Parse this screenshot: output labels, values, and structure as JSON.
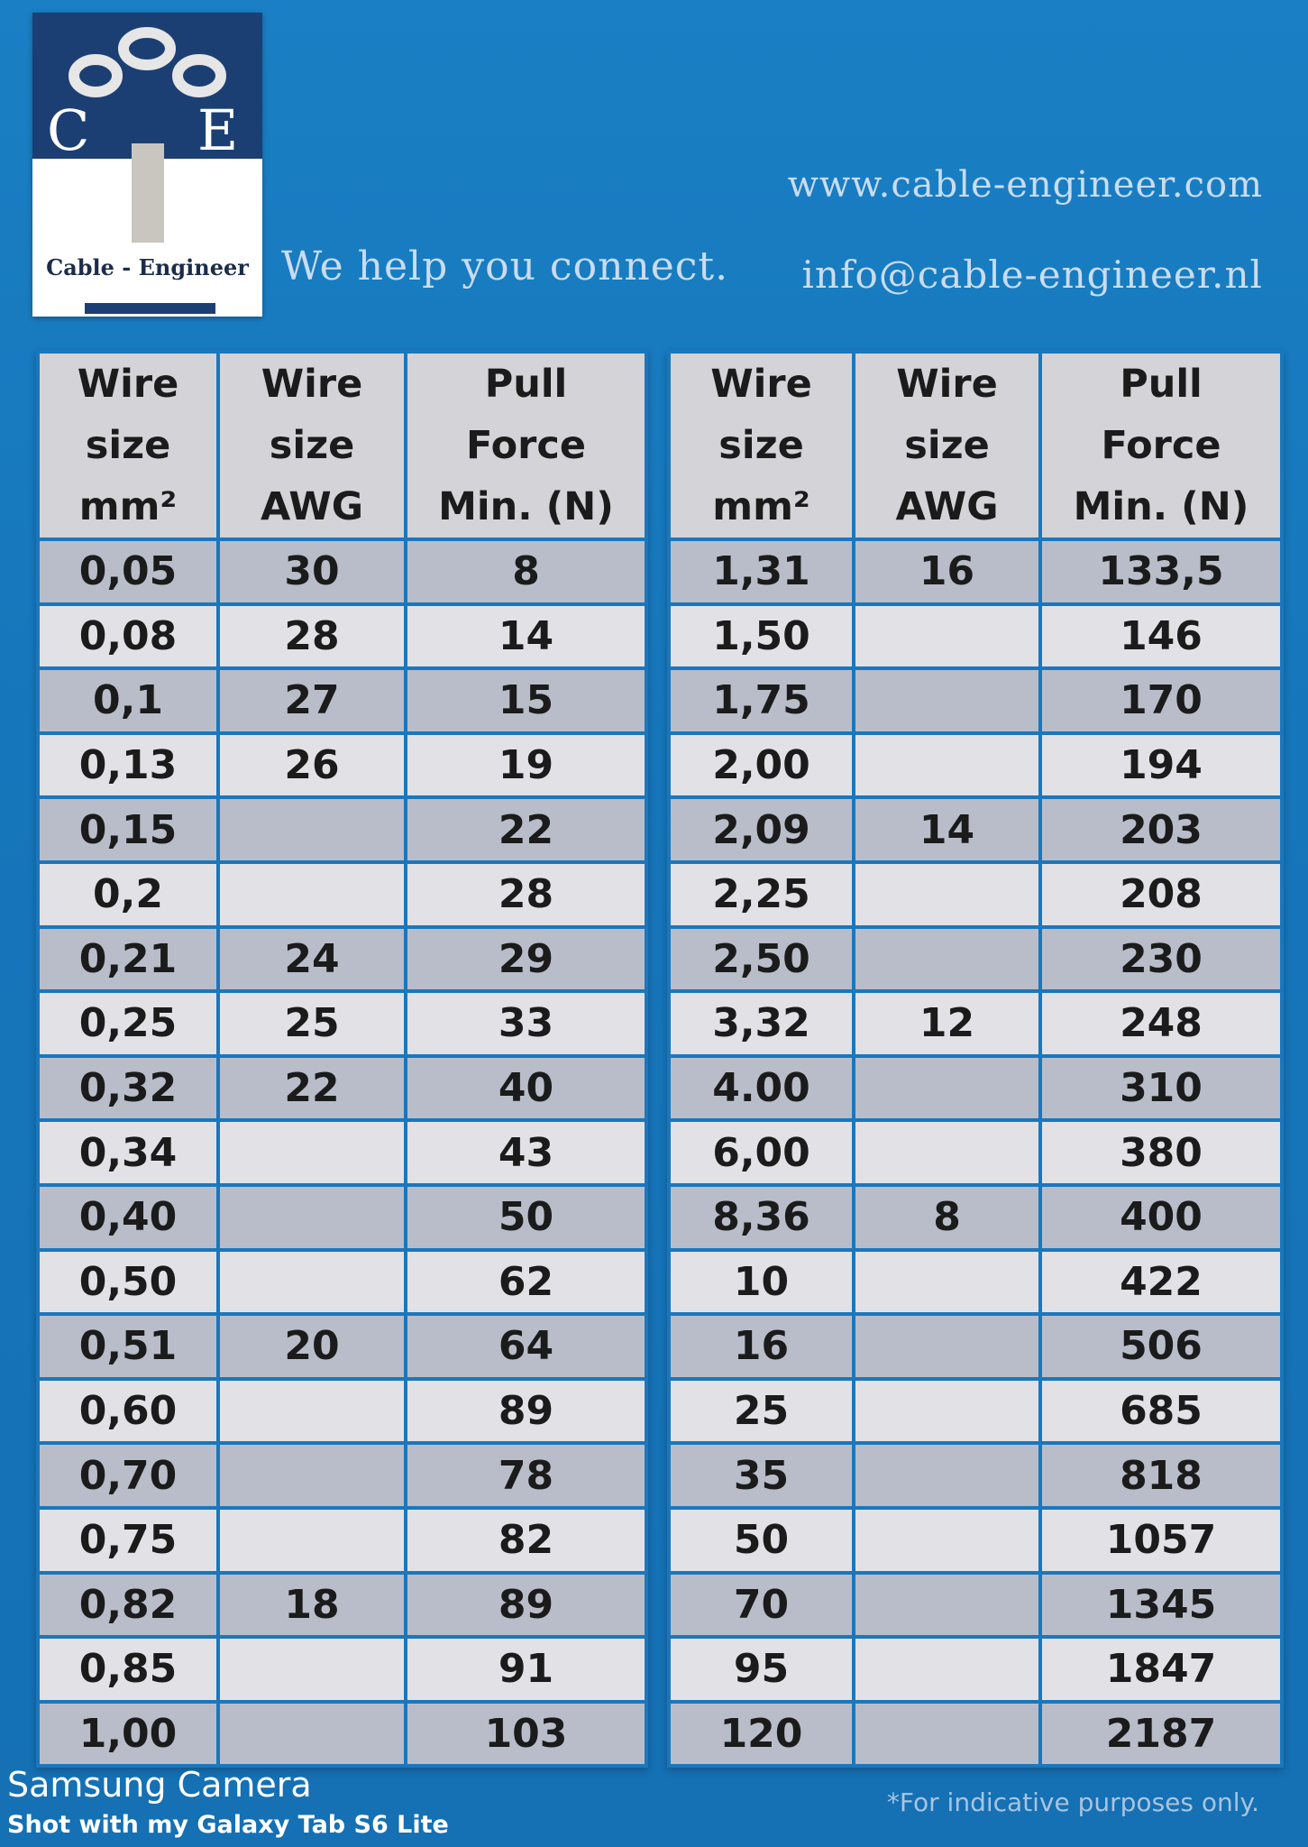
{
  "brand": {
    "logo_left_letter": "C",
    "logo_right_letter": "E",
    "logo_name": "Cable - Engineer",
    "tagline": "We help you connect.",
    "website": "www.cable-engineer.com",
    "email": "info@cable-engineer.nl"
  },
  "headers": {
    "col1": [
      "Wire",
      "size",
      "mm²"
    ],
    "col2": [
      "Wire",
      "size",
      "AWG"
    ],
    "col3": [
      "Pull",
      "Force",
      "Min. (N)"
    ]
  },
  "left_rows": [
    [
      "0,05",
      "30",
      "8"
    ],
    [
      "0,08",
      "28",
      "14"
    ],
    [
      "0,1",
      "27",
      "15"
    ],
    [
      "0,13",
      "26",
      "19"
    ],
    [
      "0,15",
      "",
      "22"
    ],
    [
      "0,2",
      "",
      "28"
    ],
    [
      "0,21",
      "24",
      "29"
    ],
    [
      "0,25",
      "25",
      "33"
    ],
    [
      "0,32",
      "22",
      "40"
    ],
    [
      "0,34",
      "",
      "43"
    ],
    [
      "0,40",
      "",
      "50"
    ],
    [
      "0,50",
      "",
      "62"
    ],
    [
      "0,51",
      "20",
      "64"
    ],
    [
      "0,60",
      "",
      "89"
    ],
    [
      "0,70",
      "",
      "78"
    ],
    [
      "0,75",
      "",
      "82"
    ],
    [
      "0,82",
      "18",
      "89"
    ],
    [
      "0,85",
      "",
      "91"
    ],
    [
      "1,00",
      "",
      "103"
    ]
  ],
  "right_rows": [
    [
      "1,31",
      "16",
      "133,5"
    ],
    [
      "1,50",
      "",
      "146"
    ],
    [
      "1,75",
      "",
      "170"
    ],
    [
      "2,00",
      "",
      "194"
    ],
    [
      "2,09",
      "14",
      "203"
    ],
    [
      "2,25",
      "",
      "208"
    ],
    [
      "2,50",
      "",
      "230"
    ],
    [
      "3,32",
      "12",
      "248"
    ],
    [
      "4.00",
      "",
      "310"
    ],
    [
      "6,00",
      "",
      "380"
    ],
    [
      "8,36",
      "8",
      "400"
    ],
    [
      "10",
      "",
      "422"
    ],
    [
      "16",
      "",
      "506"
    ],
    [
      "25",
      "",
      "685"
    ],
    [
      "35",
      "",
      "818"
    ],
    [
      "50",
      "",
      "1057"
    ],
    [
      "70",
      "",
      "1345"
    ],
    [
      "95",
      "",
      "1847"
    ],
    [
      "120",
      "",
      "2187"
    ]
  ],
  "footer": {
    "camera_title": "Samsung Camera",
    "camera_subtitle": "Shot with my Galaxy Tab S6 Lite",
    "disclaimer": "*For indicative purposes only."
  },
  "colors": {
    "background": "#1676bb",
    "logo_navy": "#1c3f73",
    "row_dark": "#b9bdc9",
    "row_light": "#e2e2e6",
    "header": "#d4d4d8"
  }
}
